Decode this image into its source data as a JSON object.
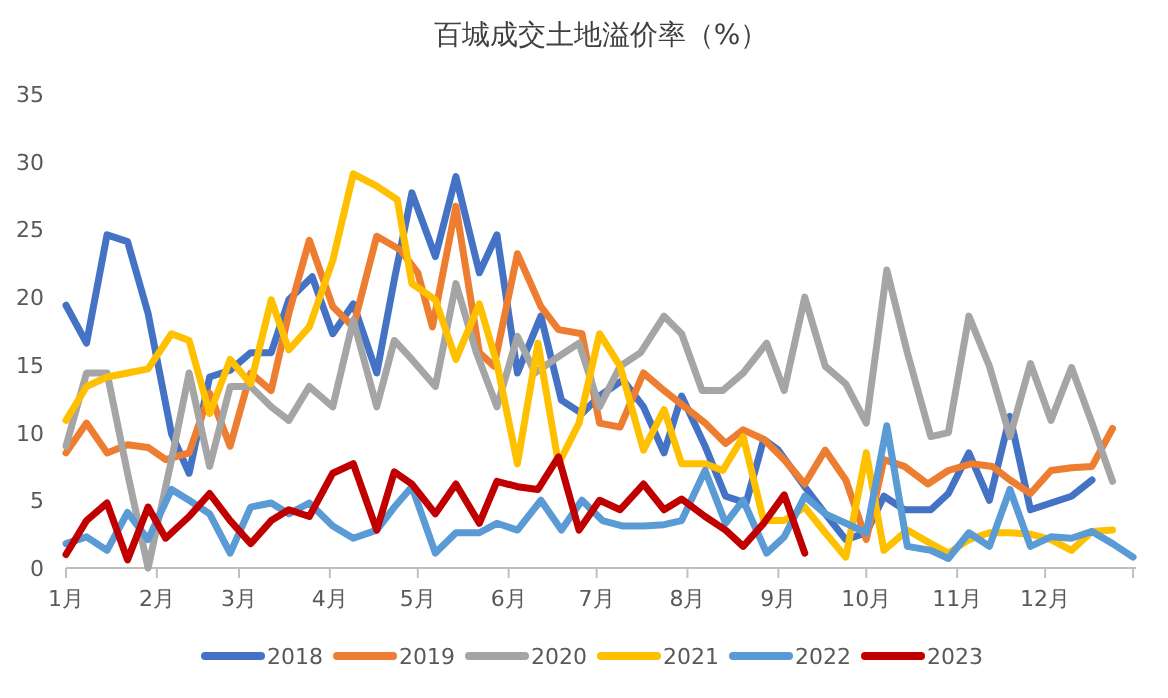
{
  "chart_data": {
    "type": "line",
    "title": "百城成交土地溢价率（%）",
    "xlim": [
      "--01-01",
      "--12-31"
    ],
    "xticks": [
      {
        "value": "--01-01",
        "label": "1月"
      },
      {
        "value": "--02-01",
        "label": "2月"
      },
      {
        "value": "--03-01",
        "label": "3月"
      },
      {
        "value": "--04-01",
        "label": "4月"
      },
      {
        "value": "--05-01",
        "label": "5月"
      },
      {
        "value": "--06-01",
        "label": "6月"
      },
      {
        "value": "--07-01",
        "label": "7月"
      },
      {
        "value": "--08-01",
        "label": "8月"
      },
      {
        "value": "--09-01",
        "label": "9月"
      },
      {
        "value": "--10-01",
        "label": "10月"
      },
      {
        "value": "--11-01",
        "label": "11月"
      },
      {
        "value": "--12-01",
        "label": "12月"
      },
      {
        "value": "--12-31",
        "label": null
      }
    ],
    "ylim": [
      0,
      35
    ],
    "yticks": [
      0,
      5,
      10,
      15,
      20,
      25,
      30,
      35
    ],
    "grid": false,
    "legend": "bottom",
    "marker": "none",
    "line_style": "solid",
    "series": [
      {
        "name": "2018",
        "color": "#4472c4",
        "x": [
          "--01-01",
          "--01-08",
          "--01-15",
          "--01-22",
          "--01-29",
          "--02-06",
          "--02-12",
          "--02-19",
          "--02-26",
          "--03-05",
          "--03-12",
          "--03-18",
          "--03-26",
          "--04-02",
          "--04-09",
          "--04-17",
          "--04-23",
          "--04-29",
          "--05-07",
          "--05-14",
          "--05-22",
          "--05-28",
          "--06-04",
          "--06-12",
          "--06-19",
          "--06-26",
          "--07-02",
          "--07-10",
          "--07-17",
          "--07-24",
          "--07-30",
          "--08-07",
          "--08-14",
          "--08-21",
          "--08-27",
          "--09-01",
          "--09-10",
          "--09-17",
          "--09-24",
          "--10-01",
          "--10-07",
          "--10-14",
          "--10-23",
          "--10-29",
          "--11-05",
          "--11-12",
          "--11-19",
          "--11-26",
          "--12-03",
          "--12-10",
          "--12-17"
        ],
        "values": [
          19.4,
          16.6,
          24.6,
          24.1,
          18.8,
          9.9,
          7.0,
          14.1,
          14.6,
          15.9,
          15.9,
          19.8,
          21.5,
          17.3,
          19.5,
          14.4,
          21.3,
          27.7,
          23.0,
          28.9,
          21.8,
          24.6,
          14.4,
          18.6,
          12.4,
          11.4,
          12.7,
          13.9,
          11.9,
          8.5,
          12.7,
          9.0,
          5.3,
          4.8,
          9.5,
          8.7,
          6.0,
          4.0,
          2.1,
          2.6,
          5.3,
          4.3,
          4.3,
          5.5,
          8.5,
          5.0,
          11.2,
          4.3,
          4.8,
          5.3,
          6.5
        ]
      },
      {
        "name": "2019",
        "color": "#ed7d31",
        "x": [
          "--01-01",
          "--01-08",
          "--01-15",
          "--01-22",
          "--01-29",
          "--02-04",
          "--02-12",
          "--02-19",
          "--02-26",
          "--03-05",
          "--03-12",
          "--03-18",
          "--03-25",
          "--04-02",
          "--04-09",
          "--04-17",
          "--04-25",
          "--05-01",
          "--05-06",
          "--05-14",
          "--05-22",
          "--05-27",
          "--06-04",
          "--06-12",
          "--06-18",
          "--06-26",
          "--07-02",
          "--07-09",
          "--07-17",
          "--07-24",
          "--07-31",
          "--08-07",
          "--08-14",
          "--08-20",
          "--08-27",
          "--09-03",
          "--09-10",
          "--09-17",
          "--09-24",
          "--10-01",
          "--10-07",
          "--10-14",
          "--10-22",
          "--10-29",
          "--11-06",
          "--11-13",
          "--11-19",
          "--11-26",
          "--12-03",
          "--12-10",
          "--12-17",
          "--12-24"
        ],
        "values": [
          8.5,
          10.7,
          8.5,
          9.1,
          8.9,
          8.0,
          8.5,
          12.9,
          9.0,
          14.4,
          13.1,
          18.8,
          24.2,
          19.3,
          17.8,
          24.5,
          23.5,
          21.8,
          17.8,
          26.7,
          15.9,
          14.9,
          23.2,
          19.3,
          17.6,
          17.3,
          10.7,
          10.4,
          14.4,
          13.1,
          11.9,
          10.7,
          9.2,
          10.2,
          9.5,
          8.0,
          6.2,
          8.7,
          6.5,
          2.1,
          8.0,
          7.5,
          6.2,
          7.2,
          7.7,
          7.5,
          6.5,
          5.5,
          7.2,
          7.4,
          7.5,
          10.3
        ]
      },
      {
        "name": "2020",
        "color": "#a5a5a5",
        "x": [
          "--01-01",
          "--01-08",
          "--01-15",
          "--01-22",
          "--01-29",
          "--02-06",
          "--02-12",
          "--02-19",
          "--02-26",
          "--03-05",
          "--03-12",
          "--03-18",
          "--03-25",
          "--04-02",
          "--04-09",
          "--04-17",
          "--04-23",
          "--04-29",
          "--05-07",
          "--05-14",
          "--05-21",
          "--05-28",
          "--06-04",
          "--06-10",
          "--06-18",
          "--06-25",
          "--07-02",
          "--07-09",
          "--07-16",
          "--07-24",
          "--07-30",
          "--08-06",
          "--08-13",
          "--08-20",
          "--08-28",
          "--09-03",
          "--09-10",
          "--09-17",
          "--09-24",
          "--10-01",
          "--10-08",
          "--10-15",
          "--10-23",
          "--10-29",
          "--11-05",
          "--11-12",
          "--11-19",
          "--11-26",
          "--12-03",
          "--12-10",
          "--12-17",
          "--12-24"
        ],
        "values": [
          9.0,
          14.4,
          14.4,
          7.0,
          0,
          8.0,
          14.4,
          7.5,
          13.4,
          13.4,
          11.9,
          10.9,
          13.4,
          11.9,
          18.3,
          11.9,
          16.8,
          15.4,
          13.4,
          21.0,
          15.9,
          11.9,
          17.1,
          14.4,
          15.6,
          16.6,
          11.9,
          14.9,
          15.9,
          18.6,
          17.3,
          13.1,
          13.1,
          14.4,
          16.6,
          13.1,
          20.0,
          14.9,
          13.6,
          10.7,
          22.0,
          15.9,
          9.7,
          10.0,
          18.6,
          14.9,
          9.7,
          15.1,
          10.9,
          14.8,
          10.7,
          6.4
        ]
      },
      {
        "name": "2021",
        "color": "#ffc000",
        "x": [
          "--01-01",
          "--01-08",
          "--01-15",
          "--01-22",
          "--01-29",
          "--02-06",
          "--02-12",
          "--02-19",
          "--02-26",
          "--03-05",
          "--03-12",
          "--03-18",
          "--03-25",
          "--04-02",
          "--04-09",
          "--04-17",
          "--04-24",
          "--04-29",
          "--05-07",
          "--05-14",
          "--05-22",
          "--05-28",
          "--06-04",
          "--06-11",
          "--06-18",
          "--06-25",
          "--07-02",
          "--07-09",
          "--07-17",
          "--07-24",
          "--07-30",
          "--08-07",
          "--08-13",
          "--08-20",
          "--08-27",
          "--09-03",
          "--09-10",
          "--09-17",
          "--09-24",
          "--10-01",
          "--10-07",
          "--10-15",
          "--10-23",
          "--10-29",
          "--11-05",
          "--11-12",
          "--11-19",
          "--11-26",
          "--12-03",
          "--12-10",
          "--12-17",
          "--12-24"
        ],
        "values": [
          10.9,
          13.4,
          14.1,
          14.4,
          14.7,
          17.3,
          16.8,
          11.4,
          15.4,
          13.6,
          19.8,
          16.1,
          17.8,
          22.7,
          29.1,
          28.2,
          27.2,
          21.0,
          19.8,
          15.4,
          19.5,
          15.1,
          7.7,
          16.6,
          7.7,
          10.7,
          17.3,
          14.9,
          8.7,
          11.7,
          7.7,
          7.7,
          7.2,
          9.7,
          3.5,
          3.5,
          4.5,
          2.6,
          0.8,
          8.5,
          1.3,
          2.8,
          1.8,
          1.1,
          2.1,
          2.6,
          2.6,
          2.5,
          2.1,
          1.3,
          2.7,
          2.8
        ]
      },
      {
        "name": "2022",
        "color": "#5b9bd5",
        "x": [
          "--01-01",
          "--01-08",
          "--01-15",
          "--01-22",
          "--01-29",
          "--02-06",
          "--02-12",
          "--02-19",
          "--02-26",
          "--03-05",
          "--03-12",
          "--03-18",
          "--03-25",
          "--04-02",
          "--04-09",
          "--04-17",
          "--04-23",
          "--04-29",
          "--05-07",
          "--05-14",
          "--05-22",
          "--05-28",
          "--06-04",
          "--06-12",
          "--06-19",
          "--06-26",
          "--07-03",
          "--07-10",
          "--07-17",
          "--07-24",
          "--07-30",
          "--08-07",
          "--08-14",
          "--08-20",
          "--08-28",
          "--09-03",
          "--09-10",
          "--09-17",
          "--09-24",
          "--10-01",
          "--10-08",
          "--10-15",
          "--10-23",
          "--10-29",
          "--11-05",
          "--11-12",
          "--11-19",
          "--11-26",
          "--12-03",
          "--12-10",
          "--12-17",
          "--12-24",
          "--12-31"
        ],
        "values": [
          1.8,
          2.3,
          1.3,
          4.1,
          2.1,
          5.8,
          5.0,
          4.0,
          1.1,
          4.5,
          4.8,
          4.0,
          4.8,
          3.1,
          2.2,
          2.8,
          4.5,
          6.0,
          1.1,
          2.6,
          2.6,
          3.3,
          2.8,
          5.0,
          2.8,
          5.0,
          3.5,
          3.1,
          3.1,
          3.2,
          3.5,
          7.2,
          3.3,
          5.0,
          1.1,
          2.3,
          5.3,
          4.0,
          3.3,
          2.6,
          10.5,
          1.6,
          1.3,
          0.7,
          2.6,
          1.6,
          5.8,
          1.6,
          2.3,
          2.2,
          2.7,
          1.8,
          0.8
        ]
      },
      {
        "name": "2023",
        "color": "#c00000",
        "x": [
          "--01-01",
          "--01-08",
          "--01-15",
          "--01-22",
          "--01-29",
          "--02-04",
          "--02-12",
          "--02-19",
          "--02-26",
          "--03-05",
          "--03-12",
          "--03-18",
          "--03-25",
          "--04-02",
          "--04-09",
          "--04-17",
          "--04-23",
          "--04-29",
          "--05-07",
          "--05-14",
          "--05-22",
          "--05-28",
          "--06-04",
          "--06-11",
          "--06-18",
          "--06-25",
          "--07-02",
          "--07-09",
          "--07-17",
          "--07-24",
          "--07-30",
          "--08-07",
          "--08-14",
          "--08-20",
          "--08-27",
          "--09-03",
          "--09-10"
        ],
        "values": [
          1.0,
          3.5,
          4.8,
          0.6,
          4.5,
          2.2,
          3.8,
          5.5,
          3.5,
          1.8,
          3.5,
          4.3,
          3.8,
          7.0,
          7.7,
          2.8,
          7.1,
          6.2,
          4.0,
          6.2,
          3.3,
          6.4,
          6.0,
          5.8,
          8.2,
          2.8,
          5.0,
          4.3,
          6.2,
          4.3,
          5.1,
          3.8,
          2.8,
          1.6,
          3.3,
          5.4,
          1.1
        ]
      }
    ]
  }
}
